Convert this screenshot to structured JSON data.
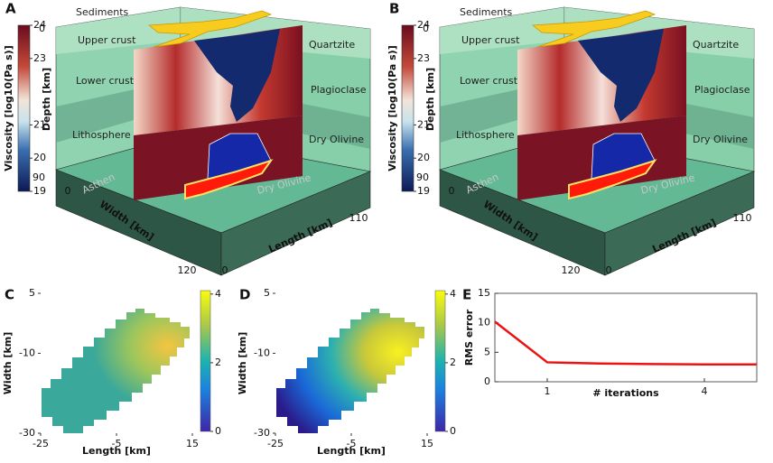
{
  "panels": [
    {
      "label": "A",
      "colorbar": {
        "label": "Viscosity [log10(Pa s)]",
        "lim": [
          19,
          24
        ],
        "ticks": [
          24,
          23,
          21,
          20,
          19
        ]
      },
      "depth_label": "Depth [km]",
      "depth_ticks": [
        0,
        90
      ],
      "width_label": "Width [km]",
      "width_ticks": [
        0,
        120
      ],
      "length_label": "Length [km]",
      "length_ticks": [
        0,
        110
      ],
      "layers_left": [
        "Sediments",
        "Upper crust",
        "Lower crust",
        "Lithosphere",
        "Asthen"
      ],
      "layers_right": [
        "Quartzite",
        "Plagioclase",
        "Dry Olivine"
      ],
      "bottom_label": "Dry Olivine"
    },
    {
      "label": "B",
      "colorbar": {
        "label": "Viscosity [log10(Pa s)]",
        "lim": [
          19,
          24
        ],
        "ticks": [
          24,
          23,
          21,
          20,
          19
        ]
      },
      "depth_label": "Depth [km]",
      "depth_ticks": [
        0,
        90
      ],
      "width_label": "Width [km]",
      "width_ticks": [
        0,
        120
      ],
      "length_label": "Length [km]",
      "length_ticks": [
        0,
        110
      ],
      "layers_left": [
        "Sediments",
        "Upper crust",
        "Lower crust",
        "Lithosphere",
        "Asthen"
      ],
      "layers_right": [
        "Quartzite",
        "Plagioclase",
        "Dry Olivine"
      ],
      "bottom_label": "Dry Olivine"
    }
  ],
  "chart_data": [
    {
      "type": "heatmap",
      "panel": "C",
      "xlabel": "Length [km]",
      "ylabel": "Width [km]",
      "xlim": [
        -25,
        15
      ],
      "ylim": [
        -30,
        5
      ],
      "xticks": [
        -25,
        -5,
        15
      ],
      "yticks": [
        5,
        -10,
        -30
      ],
      "clim": [
        0,
        4.1
      ],
      "cticks": [
        0,
        2,
        4
      ]
    },
    {
      "type": "heatmap",
      "panel": "D",
      "xlabel": "Length [km]",
      "ylabel": "Width [km]",
      "xlim": [
        -25,
        15
      ],
      "ylim": [
        -30,
        5
      ],
      "xticks": [
        -25,
        -5,
        15
      ],
      "yticks": [
        5,
        -10,
        -30
      ],
      "clim": [
        0,
        4.1
      ],
      "cticks": [
        0,
        2,
        4
      ]
    },
    {
      "type": "line",
      "panel": "E",
      "xlabel": "# iterations",
      "ylabel": "RMS error",
      "x": [
        0,
        1,
        2,
        3,
        4,
        5
      ],
      "values": [
        10.2,
        3.3,
        3.1,
        3.0,
        2.95,
        2.95
      ],
      "color": "#ee1111",
      "xlim": [
        0,
        5
      ],
      "ylim": [
        0,
        15
      ],
      "xticks": [
        1,
        4
      ],
      "yticks": [
        0,
        5,
        10,
        15
      ]
    }
  ]
}
